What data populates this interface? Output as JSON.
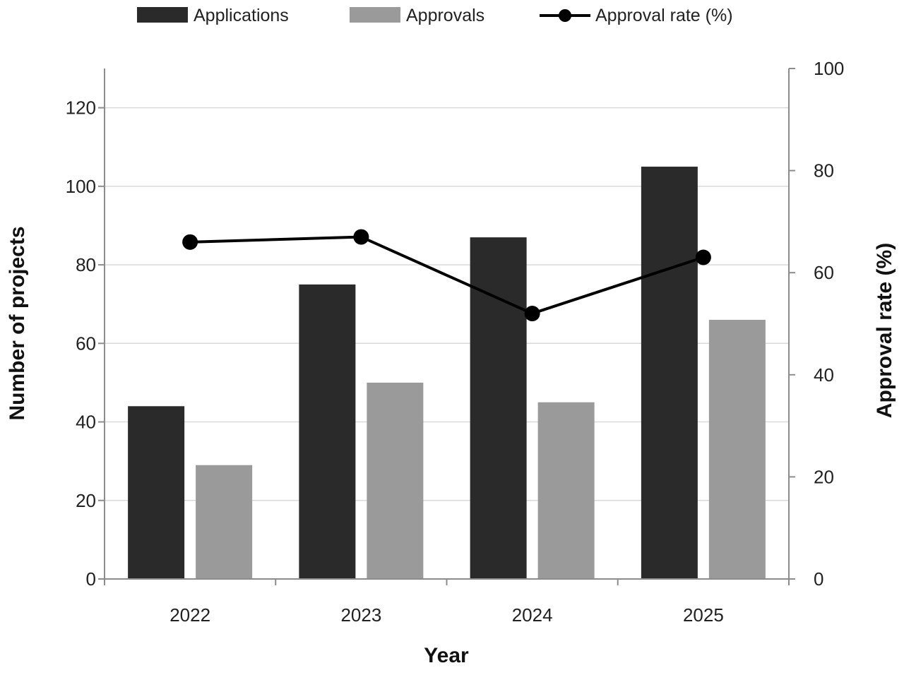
{
  "chart_data": {
    "type": "bar",
    "categories": [
      "2022",
      "2023",
      "2024",
      "2025"
    ],
    "series": [
      {
        "name": "Applications",
        "type": "bar",
        "axis": "left",
        "color": "#2a2a2a",
        "values": [
          44,
          75,
          87,
          105
        ]
      },
      {
        "name": "Approvals",
        "type": "bar",
        "axis": "left",
        "color": "#9a9a9a",
        "values": [
          29,
          50,
          45,
          66
        ]
      },
      {
        "name": "Approval rate (%)",
        "type": "line",
        "axis": "right",
        "color": "#000000",
        "marker": "circle",
        "values": [
          66,
          67,
          52,
          63
        ]
      }
    ],
    "xlabel": "Year",
    "ylabel": "Number of projects",
    "y2label": "Approval rate (%)",
    "ylim": [
      0,
      130
    ],
    "yticks": [
      0,
      20,
      40,
      60,
      80,
      100,
      120
    ],
    "y2lim": [
      0,
      100
    ],
    "y2ticks": [
      0,
      20,
      40,
      60,
      80,
      100
    ],
    "grid": true,
    "legend_position": "top"
  }
}
